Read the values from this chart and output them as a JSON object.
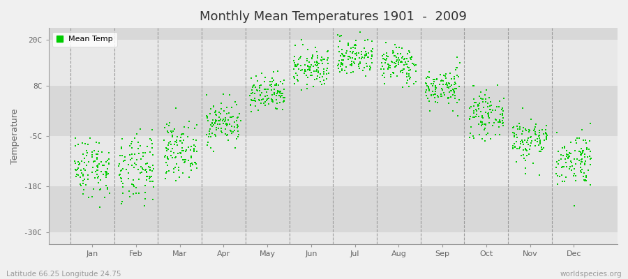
{
  "title": "Monthly Mean Temperatures 1901  -  2009",
  "ylabel": "Temperature",
  "subtitle_left": "Latitude 66.25 Longitude 24.75",
  "subtitle_right": "worldspecies.org",
  "legend_label": "Mean Temp",
  "marker_color": "#00cc00",
  "plot_bg_color": "#e8e8e8",
  "outer_bg_color": "#f0f0f0",
  "band_colors": [
    "#e8e8e8",
    "#d8d8d8"
  ],
  "yticks": [
    -30,
    -18,
    -5,
    8,
    20
  ],
  "ytick_labels": [
    "-30C",
    "-18C",
    "-5C",
    "8C",
    "20C"
  ],
  "ylim": [
    -33,
    23
  ],
  "xlim": [
    0,
    13
  ],
  "month_names": [
    "Jan",
    "Feb",
    "Mar",
    "Apr",
    "May",
    "Jun",
    "Jul",
    "Aug",
    "Sep",
    "Oct",
    "Nov",
    "Dec"
  ],
  "n_years": 109,
  "mean_temps": [
    -13.0,
    -14.0,
    -8.5,
    -1.5,
    5.5,
    12.5,
    15.5,
    13.5,
    7.5,
    0.5,
    -6.0,
    -11.0
  ],
  "std_temps": [
    4.0,
    4.5,
    3.5,
    2.8,
    2.5,
    2.5,
    2.5,
    2.5,
    2.5,
    2.8,
    3.0,
    3.5
  ],
  "seed": 42,
  "figsize": [
    9.0,
    4.0
  ],
  "dpi": 100
}
